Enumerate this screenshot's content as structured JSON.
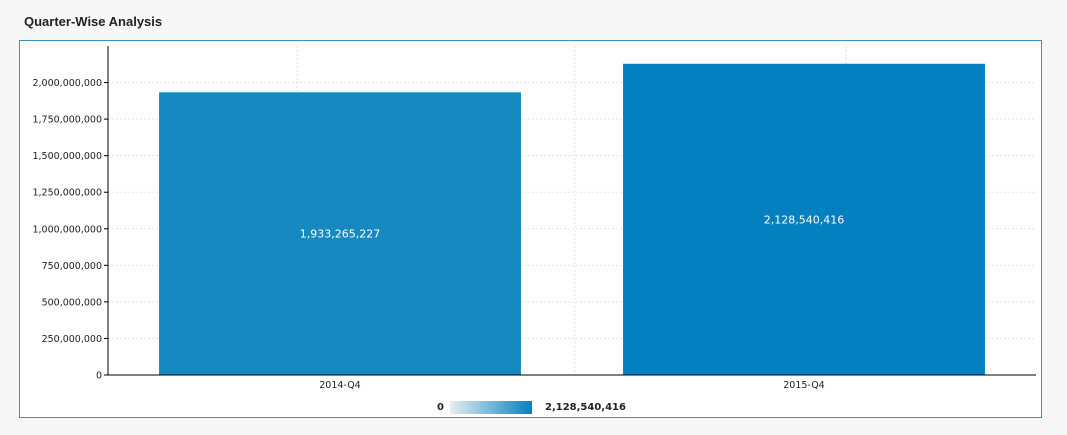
{
  "panel": {
    "title": "Quarter-Wise Analysis"
  },
  "colors": {
    "bar": [
      "#1789c1",
      "#0280bf"
    ],
    "grid": "#e3e3e3",
    "axis": "#000000",
    "frame": "#3d8fc6",
    "legend_start": "#e8eef2",
    "legend_end": "#0280bf"
  },
  "chart_data": {
    "type": "bar",
    "title": "",
    "xlabel": "",
    "ylabel": "",
    "categories": [
      "2014-Q4",
      "2015-Q4"
    ],
    "values": [
      1933265227,
      2128540416
    ],
    "value_labels": [
      "1,933,265,227",
      "2,128,540,416"
    ],
    "ylim": [
      0,
      2250000000
    ],
    "yticks": [
      0,
      250000000,
      500000000,
      750000000,
      1000000000,
      1250000000,
      1500000000,
      1750000000,
      2000000000
    ],
    "ytick_labels": [
      "0",
      "250,000,000",
      "500,000,000",
      "750,000,000",
      "1,000,000,000",
      "1,250,000,000",
      "1,500,000,000",
      "1,750,000,000",
      "2,000,000,000"
    ],
    "grid": true,
    "legend": {
      "type": "gradient",
      "placement": "bottom-center",
      "min_label": "0",
      "max_label": "2,128,540,416"
    }
  }
}
